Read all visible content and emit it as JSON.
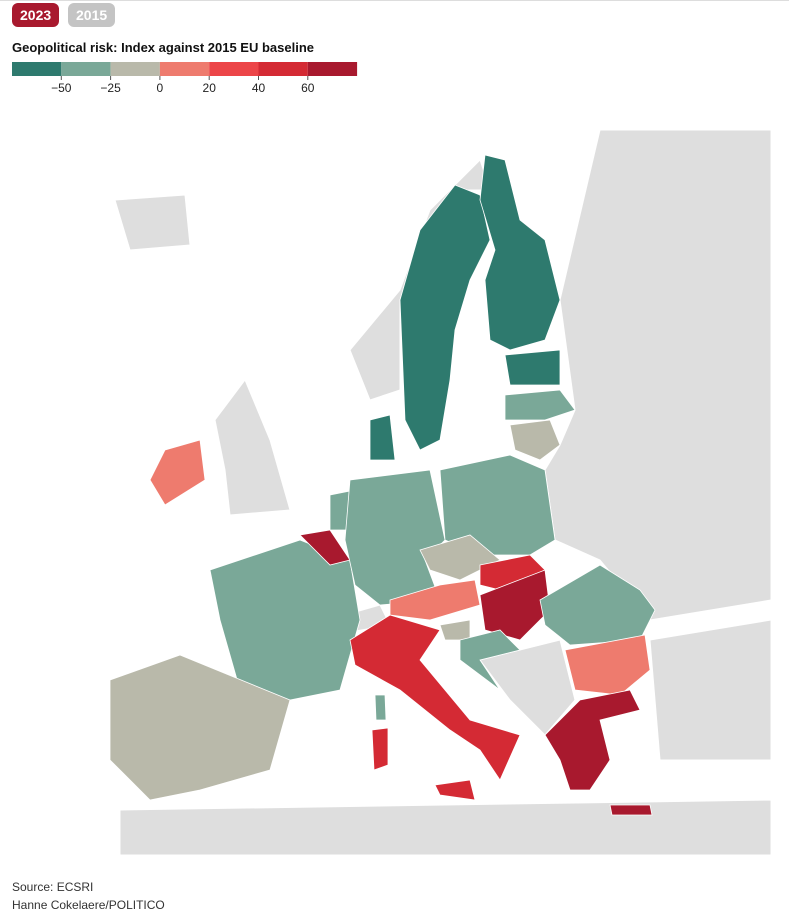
{
  "controls": {
    "buttons": [
      "2023",
      "2015"
    ]
  },
  "title": "Geopolitical risk: Index against 2015 EU baseline",
  "legend": {
    "colors": [
      "#2e7a6e",
      "#7aa898",
      "#b9b9aa",
      "#ee7b6e",
      "#ec4548",
      "#d42a34",
      "#a8192e"
    ],
    "ticks": [
      {
        "value": -50,
        "label": "−50"
      },
      {
        "value": -25,
        "label": "−25"
      },
      0,
      20,
      40,
      60
    ]
  },
  "footer": {
    "source": "Source: ECSRI",
    "credit": "Hanne Cokelaere/POLITICO"
  }
}
